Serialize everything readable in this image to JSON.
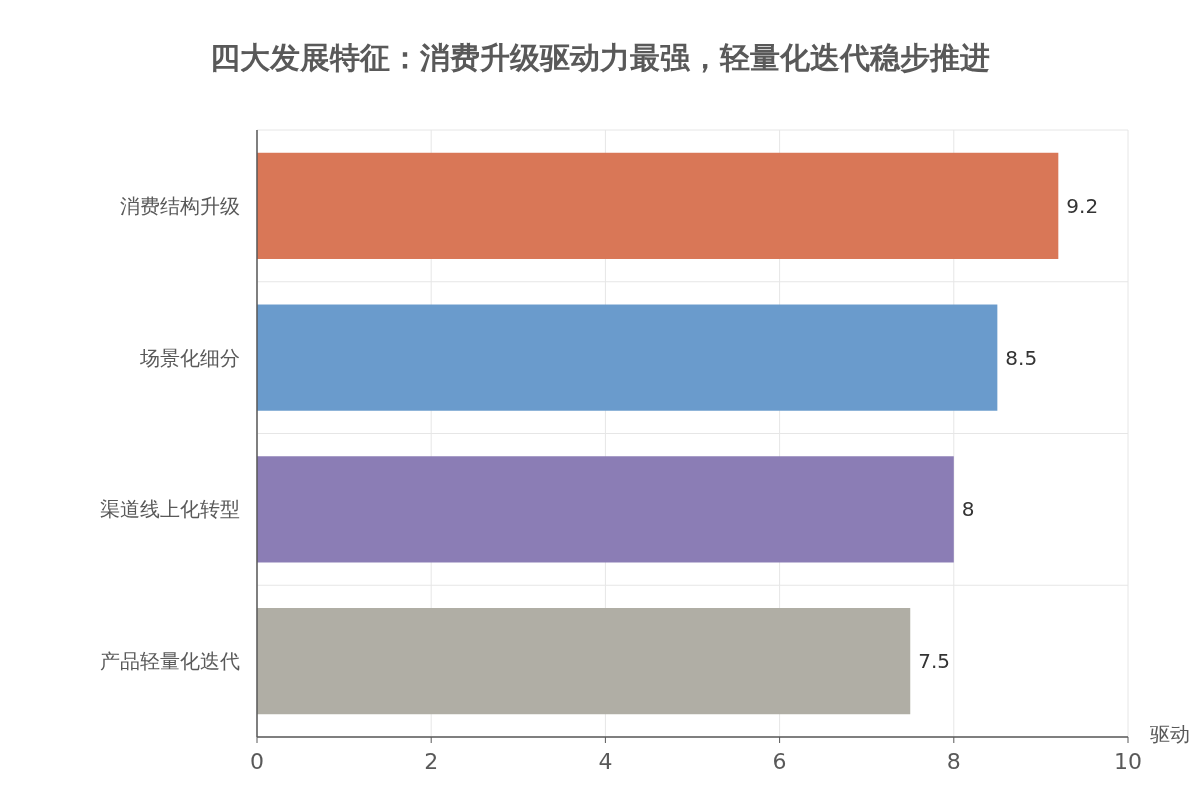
{
  "chart_data": {
    "type": "bar",
    "orientation": "horizontal",
    "title": "四大发展特征：消费升级驱动力最强，轻量化迭代稳步推进",
    "xlabel": "驱动",
    "categories": [
      "消费结构升级",
      "场景化细分",
      "渠道线上化转型",
      "产品轻量化迭代"
    ],
    "values": [
      9.2,
      8.5,
      8,
      7.5
    ],
    "colors": [
      "#d97757",
      "#6a9bcc",
      "#8b7db5",
      "#b0aea5"
    ],
    "xlim": [
      0,
      10
    ],
    "xticks": [
      0,
      2,
      4,
      6,
      8,
      10
    ],
    "grid": true,
    "data_labels": true
  }
}
